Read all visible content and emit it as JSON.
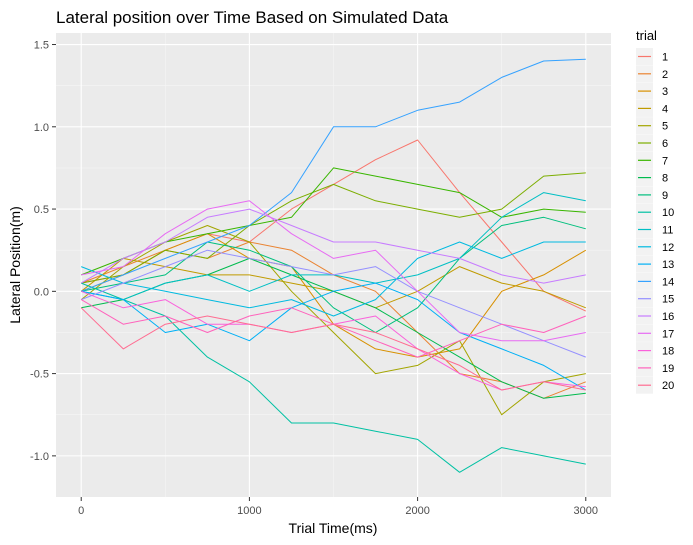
{
  "chart_data": {
    "type": "line",
    "title": "Lateral position over Time Based on Simulated Data",
    "xlabel": "Trial Time(ms)",
    "ylabel": "Lateral Position(m)",
    "xlim": [
      -150,
      3150
    ],
    "ylim": [
      -1.25,
      1.57
    ],
    "x_ticks": [
      0,
      1000,
      2000,
      3000
    ],
    "x_tick_labels": [
      "0",
      "1000",
      "2000",
      "3000"
    ],
    "y_ticks": [
      -1.0,
      -0.5,
      0.0,
      0.5,
      1.0,
      1.5
    ],
    "y_tick_labels": [
      "-1.0",
      "-0.5",
      "0.0",
      "0.5",
      "1.0",
      "1.5"
    ],
    "grid": true,
    "legend": {
      "title": "trial",
      "position": "right"
    },
    "x": [
      0,
      250,
      500,
      750,
      1000,
      1250,
      1500,
      1750,
      2000,
      2250,
      2500,
      2750,
      3000
    ],
    "series": [
      {
        "name": "1",
        "color": "#F8766D",
        "values": [
          0.05,
          0.1,
          0.25,
          0.35,
          0.3,
          0.5,
          0.65,
          0.8,
          0.92,
          0.6,
          0.3,
          0.0,
          -0.12
        ]
      },
      {
        "name": "2",
        "color": "#EA8331",
        "values": [
          0.05,
          0.15,
          0.25,
          0.2,
          0.3,
          0.25,
          0.1,
          0.0,
          -0.25,
          -0.5,
          -0.55,
          -0.65,
          -0.55
        ]
      },
      {
        "name": "3",
        "color": "#D89000",
        "values": [
          0.0,
          0.1,
          0.25,
          0.35,
          0.2,
          0.15,
          -0.2,
          -0.35,
          -0.4,
          -0.35,
          0.0,
          0.1,
          0.25
        ]
      },
      {
        "name": "4",
        "color": "#C09B00",
        "values": [
          0.0,
          0.2,
          0.15,
          0.1,
          0.1,
          0.05,
          0.0,
          -0.1,
          0.0,
          0.15,
          0.05,
          0.0,
          -0.1
        ]
      },
      {
        "name": "5",
        "color": "#A3A500",
        "values": [
          -0.05,
          0.15,
          0.3,
          0.4,
          0.3,
          0.0,
          -0.25,
          -0.5,
          -0.45,
          -0.3,
          -0.75,
          -0.55,
          -0.5
        ]
      },
      {
        "name": "6",
        "color": "#7CAE00",
        "values": [
          0.05,
          0.1,
          0.25,
          0.2,
          0.4,
          0.55,
          0.65,
          0.55,
          0.5,
          0.45,
          0.5,
          0.7,
          0.72
        ]
      },
      {
        "name": "7",
        "color": "#39B600",
        "values": [
          0.1,
          0.2,
          0.3,
          0.35,
          0.4,
          0.45,
          0.75,
          0.7,
          0.65,
          0.6,
          0.45,
          0.5,
          0.48
        ]
      },
      {
        "name": "8",
        "color": "#00BB4E",
        "values": [
          -0.1,
          -0.05,
          0.05,
          0.1,
          0.2,
          0.1,
          0.0,
          -0.1,
          -0.25,
          -0.4,
          -0.55,
          -0.65,
          -0.62
        ]
      },
      {
        "name": "9",
        "color": "#00BF7D",
        "values": [
          0.0,
          0.05,
          0.1,
          0.3,
          0.25,
          0.15,
          -0.1,
          -0.25,
          -0.1,
          0.2,
          0.4,
          0.45,
          0.38
        ]
      },
      {
        "name": "10",
        "color": "#00C1A3",
        "values": [
          0.05,
          -0.05,
          -0.15,
          -0.4,
          -0.55,
          -0.8,
          -0.8,
          -0.85,
          -0.9,
          -1.1,
          -0.95,
          -1.0,
          -1.05
        ]
      },
      {
        "name": "11",
        "color": "#00BFC4",
        "values": [
          0.0,
          -0.05,
          0.05,
          0.1,
          0.0,
          0.1,
          0.1,
          0.05,
          0.1,
          0.2,
          0.45,
          0.6,
          0.55
        ]
      },
      {
        "name": "12",
        "color": "#00BAE0",
        "values": [
          0.15,
          0.05,
          0.0,
          -0.05,
          -0.1,
          -0.05,
          -0.15,
          -0.05,
          0.2,
          0.3,
          0.2,
          0.3,
          0.3
        ]
      },
      {
        "name": "13",
        "color": "#00B0F6",
        "values": [
          0.0,
          -0.05,
          -0.25,
          -0.2,
          -0.3,
          -0.1,
          0.0,
          0.05,
          -0.05,
          -0.25,
          -0.35,
          -0.45,
          -0.6
        ]
      },
      {
        "name": "14",
        "color": "#35A2FF",
        "values": [
          0.0,
          0.1,
          0.2,
          0.3,
          0.4,
          0.6,
          1.0,
          1.0,
          1.1,
          1.15,
          1.3,
          1.4,
          1.41
        ]
      },
      {
        "name": "15",
        "color": "#9590FF",
        "values": [
          -0.05,
          0.05,
          0.15,
          0.25,
          0.2,
          0.15,
          0.1,
          0.15,
          0.0,
          -0.1,
          -0.2,
          -0.3,
          -0.4
        ]
      },
      {
        "name": "16",
        "color": "#C77CFF",
        "values": [
          0.05,
          0.2,
          0.3,
          0.45,
          0.5,
          0.4,
          0.3,
          0.3,
          0.25,
          0.2,
          0.1,
          0.05,
          0.1
        ]
      },
      {
        "name": "17",
        "color": "#E76BF3",
        "values": [
          0.1,
          0.15,
          0.35,
          0.5,
          0.55,
          0.35,
          0.2,
          0.25,
          0.0,
          -0.25,
          -0.3,
          -0.3,
          -0.25
        ]
      },
      {
        "name": "18",
        "color": "#FA62DB",
        "values": [
          0.0,
          -0.1,
          -0.05,
          -0.2,
          -0.2,
          -0.25,
          -0.2,
          -0.15,
          -0.35,
          -0.5,
          -0.6,
          -0.55,
          -0.58
        ]
      },
      {
        "name": "19",
        "color": "#FF62BC",
        "values": [
          -0.05,
          -0.2,
          -0.15,
          -0.25,
          -0.15,
          -0.1,
          -0.2,
          -0.3,
          -0.4,
          -0.3,
          -0.2,
          -0.25,
          -0.15
        ]
      },
      {
        "name": "20",
        "color": "#FF6C91",
        "values": [
          -0.1,
          -0.35,
          -0.2,
          -0.15,
          -0.2,
          -0.25,
          -0.2,
          -0.25,
          -0.35,
          -0.45,
          -0.6,
          -0.55,
          -0.6
        ]
      }
    ]
  }
}
